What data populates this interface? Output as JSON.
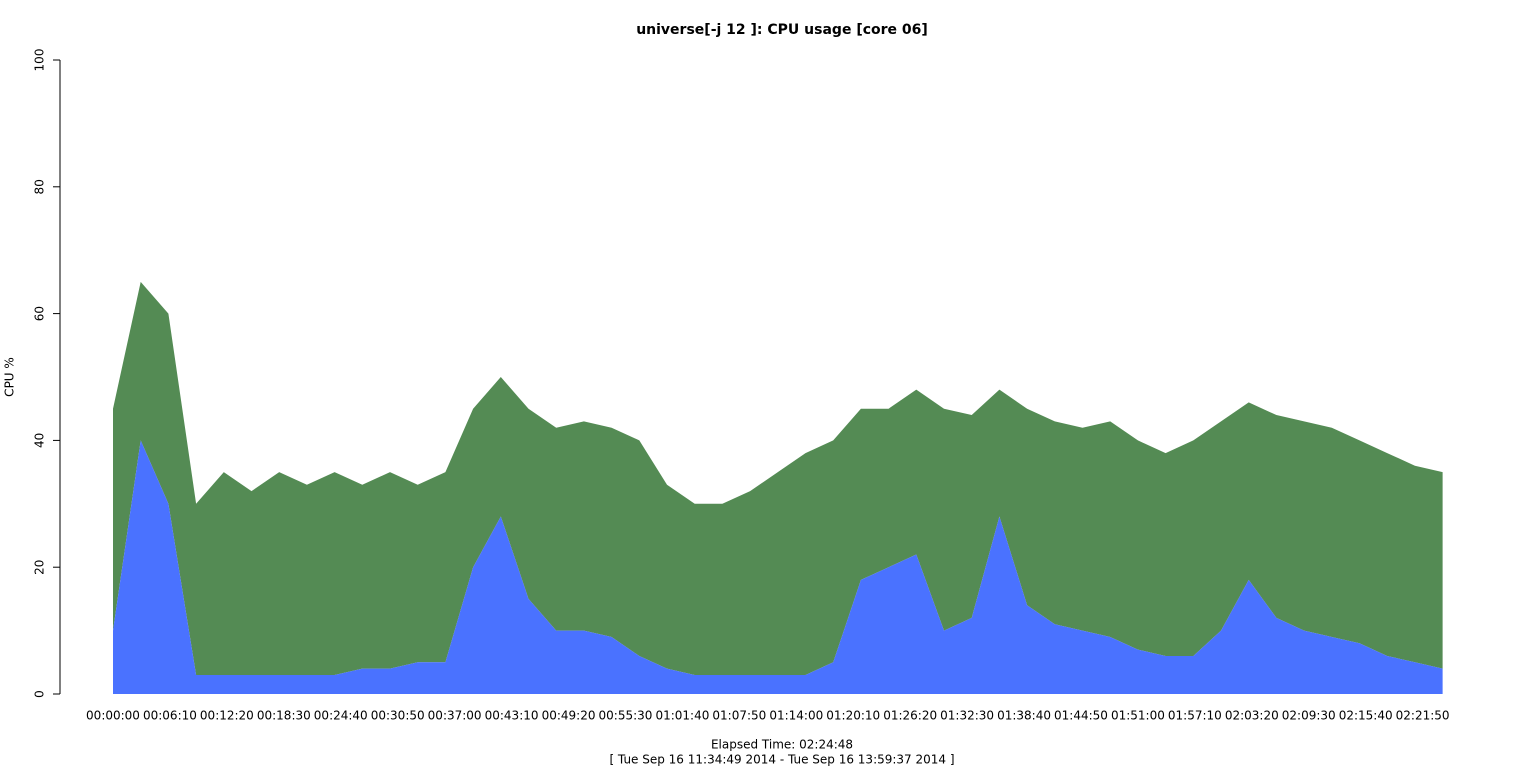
{
  "chart_data": {
    "type": "area",
    "stacked": true,
    "title": "universe[-j 12  ]: CPU usage [core 06]",
    "x_label": "Elapsed Time: 02:24:48",
    "subtitle": "[ Tue Sep 16 11:34:49 2014 - Tue Sep 16 13:59:37 2014 ]",
    "y_label": "CPU %",
    "x": [
      0,
      180,
      360,
      540,
      720,
      900,
      1080,
      1260,
      1440,
      1620,
      1800,
      1980,
      2160,
      2340,
      2520,
      2700,
      2880,
      3060,
      3240,
      3420,
      3600,
      3780,
      3960,
      4140,
      4320,
      4500,
      4680,
      4860,
      5040,
      5220,
      5400,
      5580,
      5760,
      5940,
      6120,
      6300,
      6480,
      6660,
      6840,
      7020,
      7200,
      7380,
      7560,
      7740,
      7920,
      8100,
      8280,
      8460,
      8640
    ],
    "series": [
      {
        "color": "#4a72ff",
        "values": [
          10,
          40,
          30,
          3,
          3,
          3,
          3,
          3,
          3,
          4,
          4,
          5,
          5,
          20,
          28,
          15,
          10,
          10,
          9,
          6,
          4,
          3,
          3,
          3,
          3,
          3,
          5,
          18,
          20,
          22,
          10,
          12,
          28,
          14,
          11,
          10,
          9,
          7,
          6,
          6,
          10,
          18,
          12,
          10,
          9,
          8,
          6,
          5,
          4
        ]
      },
      {
        "color": "#548b54",
        "values": [
          35,
          25,
          30,
          27,
          32,
          29,
          32,
          30,
          32,
          29,
          31,
          28,
          30,
          25,
          22,
          30,
          32,
          33,
          33,
          34,
          29,
          27,
          27,
          29,
          32,
          35,
          35,
          27,
          25,
          26,
          35,
          32,
          20,
          31,
          32,
          32,
          34,
          33,
          32,
          34,
          33,
          28,
          32,
          33,
          33,
          32,
          32,
          31,
          31
        ]
      }
    ],
    "xlim": [
      0,
      8688
    ],
    "xticks": [
      {
        "value": 0,
        "label": "00:00:00"
      },
      {
        "value": 370,
        "label": "00:06:10"
      },
      {
        "value": 740,
        "label": "00:12:20"
      },
      {
        "value": 1110,
        "label": "00:18:30"
      },
      {
        "value": 1480,
        "label": "00:24:40"
      },
      {
        "value": 1850,
        "label": "00:30:50"
      },
      {
        "value": 2220,
        "label": "00:37:00"
      },
      {
        "value": 2590,
        "label": "00:43:10"
      },
      {
        "value": 2960,
        "label": "00:49:20"
      },
      {
        "value": 3330,
        "label": "00:55:30"
      },
      {
        "value": 3700,
        "label": "01:01:40"
      },
      {
        "value": 4070,
        "label": "01:07:50"
      },
      {
        "value": 4440,
        "label": "01:14:00"
      },
      {
        "value": 4810,
        "label": "01:20:10"
      },
      {
        "value": 5180,
        "label": "01:26:20"
      },
      {
        "value": 5550,
        "label": "01:32:30"
      },
      {
        "value": 5920,
        "label": "01:38:40"
      },
      {
        "value": 6290,
        "label": "01:44:50"
      },
      {
        "value": 6660,
        "label": "01:51:00"
      },
      {
        "value": 7030,
        "label": "01:57:10"
      },
      {
        "value": 7400,
        "label": "02:03:20"
      },
      {
        "value": 7770,
        "label": "02:09:30"
      },
      {
        "value": 8140,
        "label": "02:15:40"
      },
      {
        "value": 8510,
        "label": "02:21:50"
      }
    ],
    "ylim": [
      0,
      100
    ],
    "yticks": [
      0,
      20,
      40,
      60,
      80,
      100
    ]
  }
}
